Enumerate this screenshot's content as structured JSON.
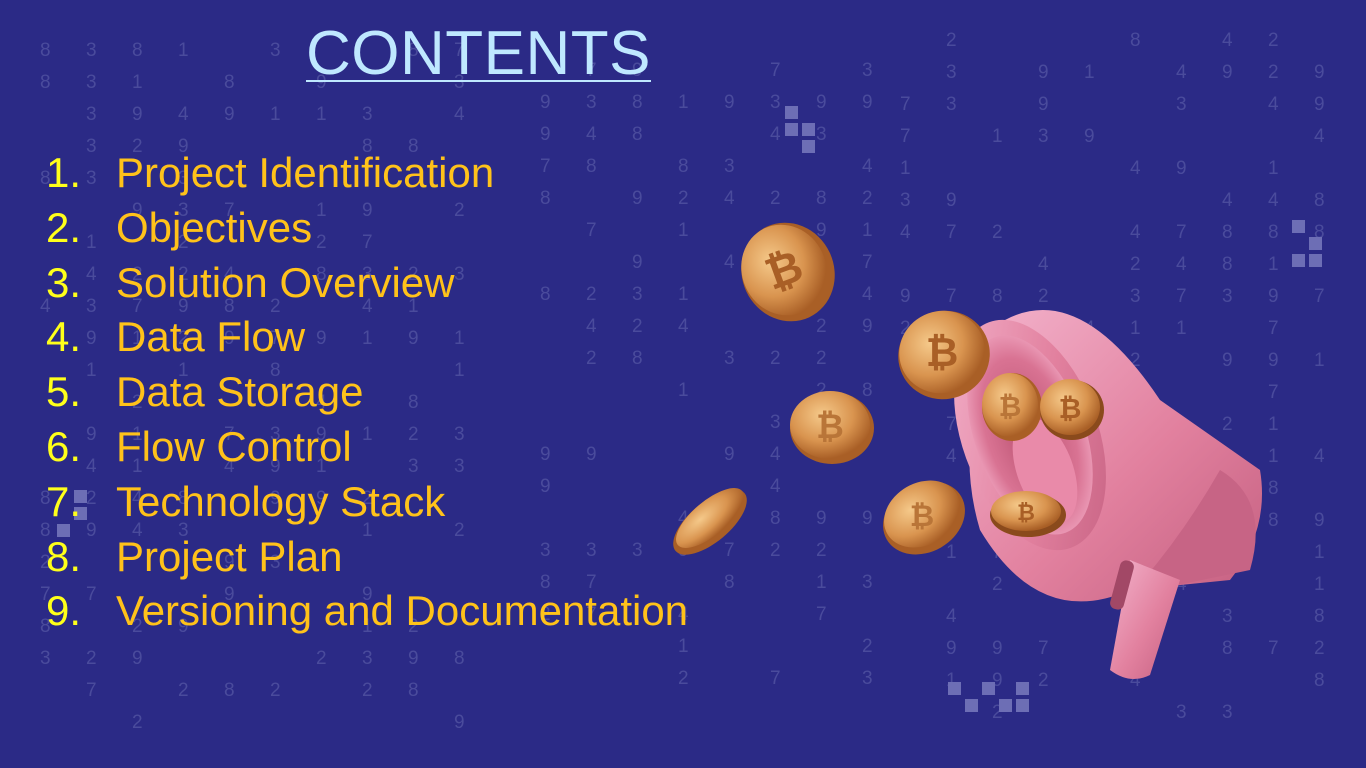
{
  "slide": {
    "title": "CONTENTS",
    "items": [
      {
        "number": "1.",
        "label": "Project Identification"
      },
      {
        "number": "2.",
        "label": "Objectives"
      },
      {
        "number": "3.",
        "label": "Solution Overview"
      },
      {
        "number": "4.",
        "label": "Data Flow"
      },
      {
        "number": "5.",
        "label": "Data Storage"
      },
      {
        "number": "6.",
        "label": "Flow Control"
      },
      {
        "number": "7.",
        "label": "Technology Stack"
      },
      {
        "number": "8.",
        "label": "Project Plan"
      },
      {
        "number": "9.",
        "label": "Versioning and Documentation"
      }
    ]
  },
  "illustration": {
    "description_icon": "megaphone-with-bitcoin-coins",
    "coin_symbol": "₿"
  },
  "colors": {
    "background": "#2b2a86",
    "title": "#bfe8ff",
    "numbers": "#ffff1a",
    "labels": "#ffc21a",
    "background_digits": "#4a4b9c"
  }
}
